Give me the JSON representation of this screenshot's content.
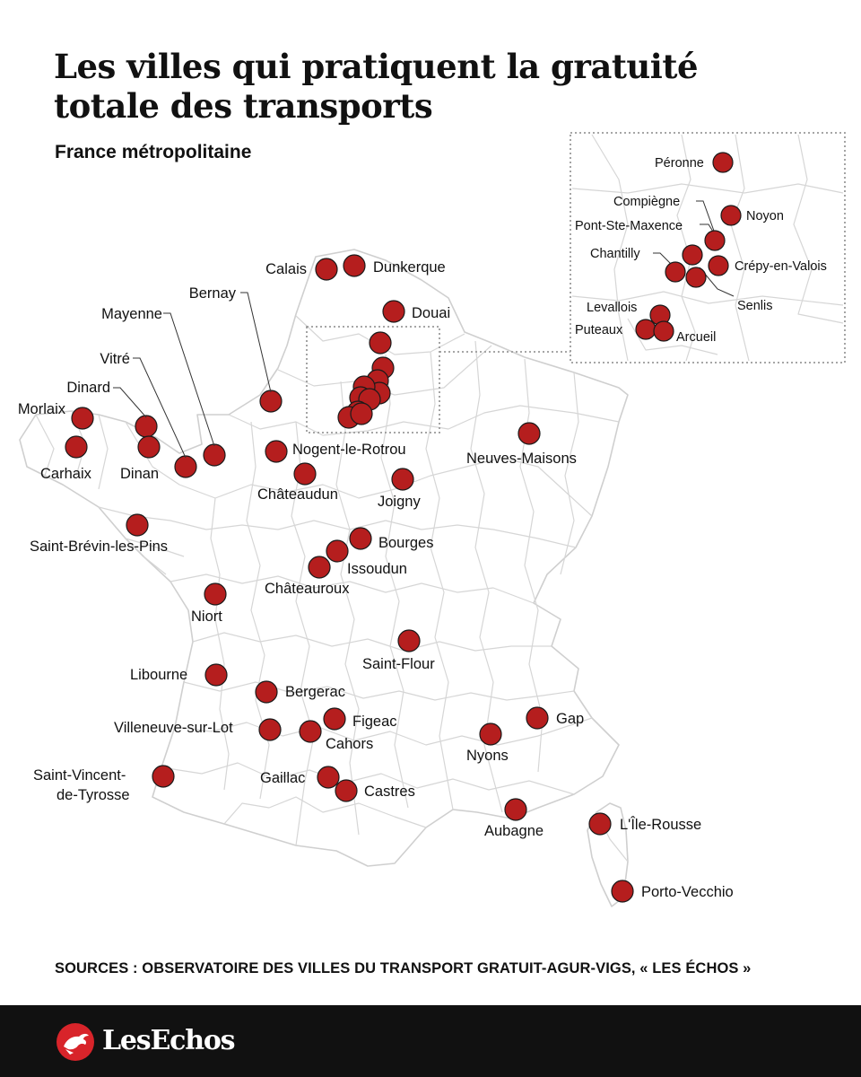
{
  "title": "Les villes qui pratiquent la gratuité totale des transports",
  "subtitle": "France métropolitaine",
  "sources": "SOURCES : OBSERVATOIRE DES VILLES DU TRANSPORT GRATUIT-AGUR-VIGS, « LES ÉCHOS »",
  "brand": {
    "name": "LesEchos"
  },
  "colors": {
    "marker": "#b51e1e",
    "borders": "#d0d0d0",
    "footer": "#111111"
  },
  "cities": [
    "Calais",
    "Dunkerque",
    "Douai",
    "Bernay",
    "Mayenne",
    "Vitré",
    "Dinard",
    "Morlaix",
    "Carhaix",
    "Dinan",
    "Nogent-le-Rotrou",
    "Châteaudun",
    "Joigny",
    "Neuves-Maisons",
    "Saint-Brévin-les-Pins",
    "Bourges",
    "Issoudun",
    "Châteauroux",
    "Niort",
    "Saint-Flour",
    "Libourne",
    "Bergerac",
    "Figeac",
    "Villeneuve-sur-Lot",
    "Cahors",
    "Nyons",
    "Gap",
    "Saint-Vincent-",
    "de-Tyrosse",
    "Gaillac",
    "Castres",
    "Aubagne",
    "L'Île-Rousse",
    "Porto-Vecchio"
  ],
  "inset_cities": [
    "Péronne",
    "Compiègne",
    "Noyon",
    "Pont-Ste-Maxence",
    "Chantilly",
    "Crépy-en-Valois",
    "Senlis",
    "Levallois",
    "Puteaux",
    "Arcueil"
  ]
}
